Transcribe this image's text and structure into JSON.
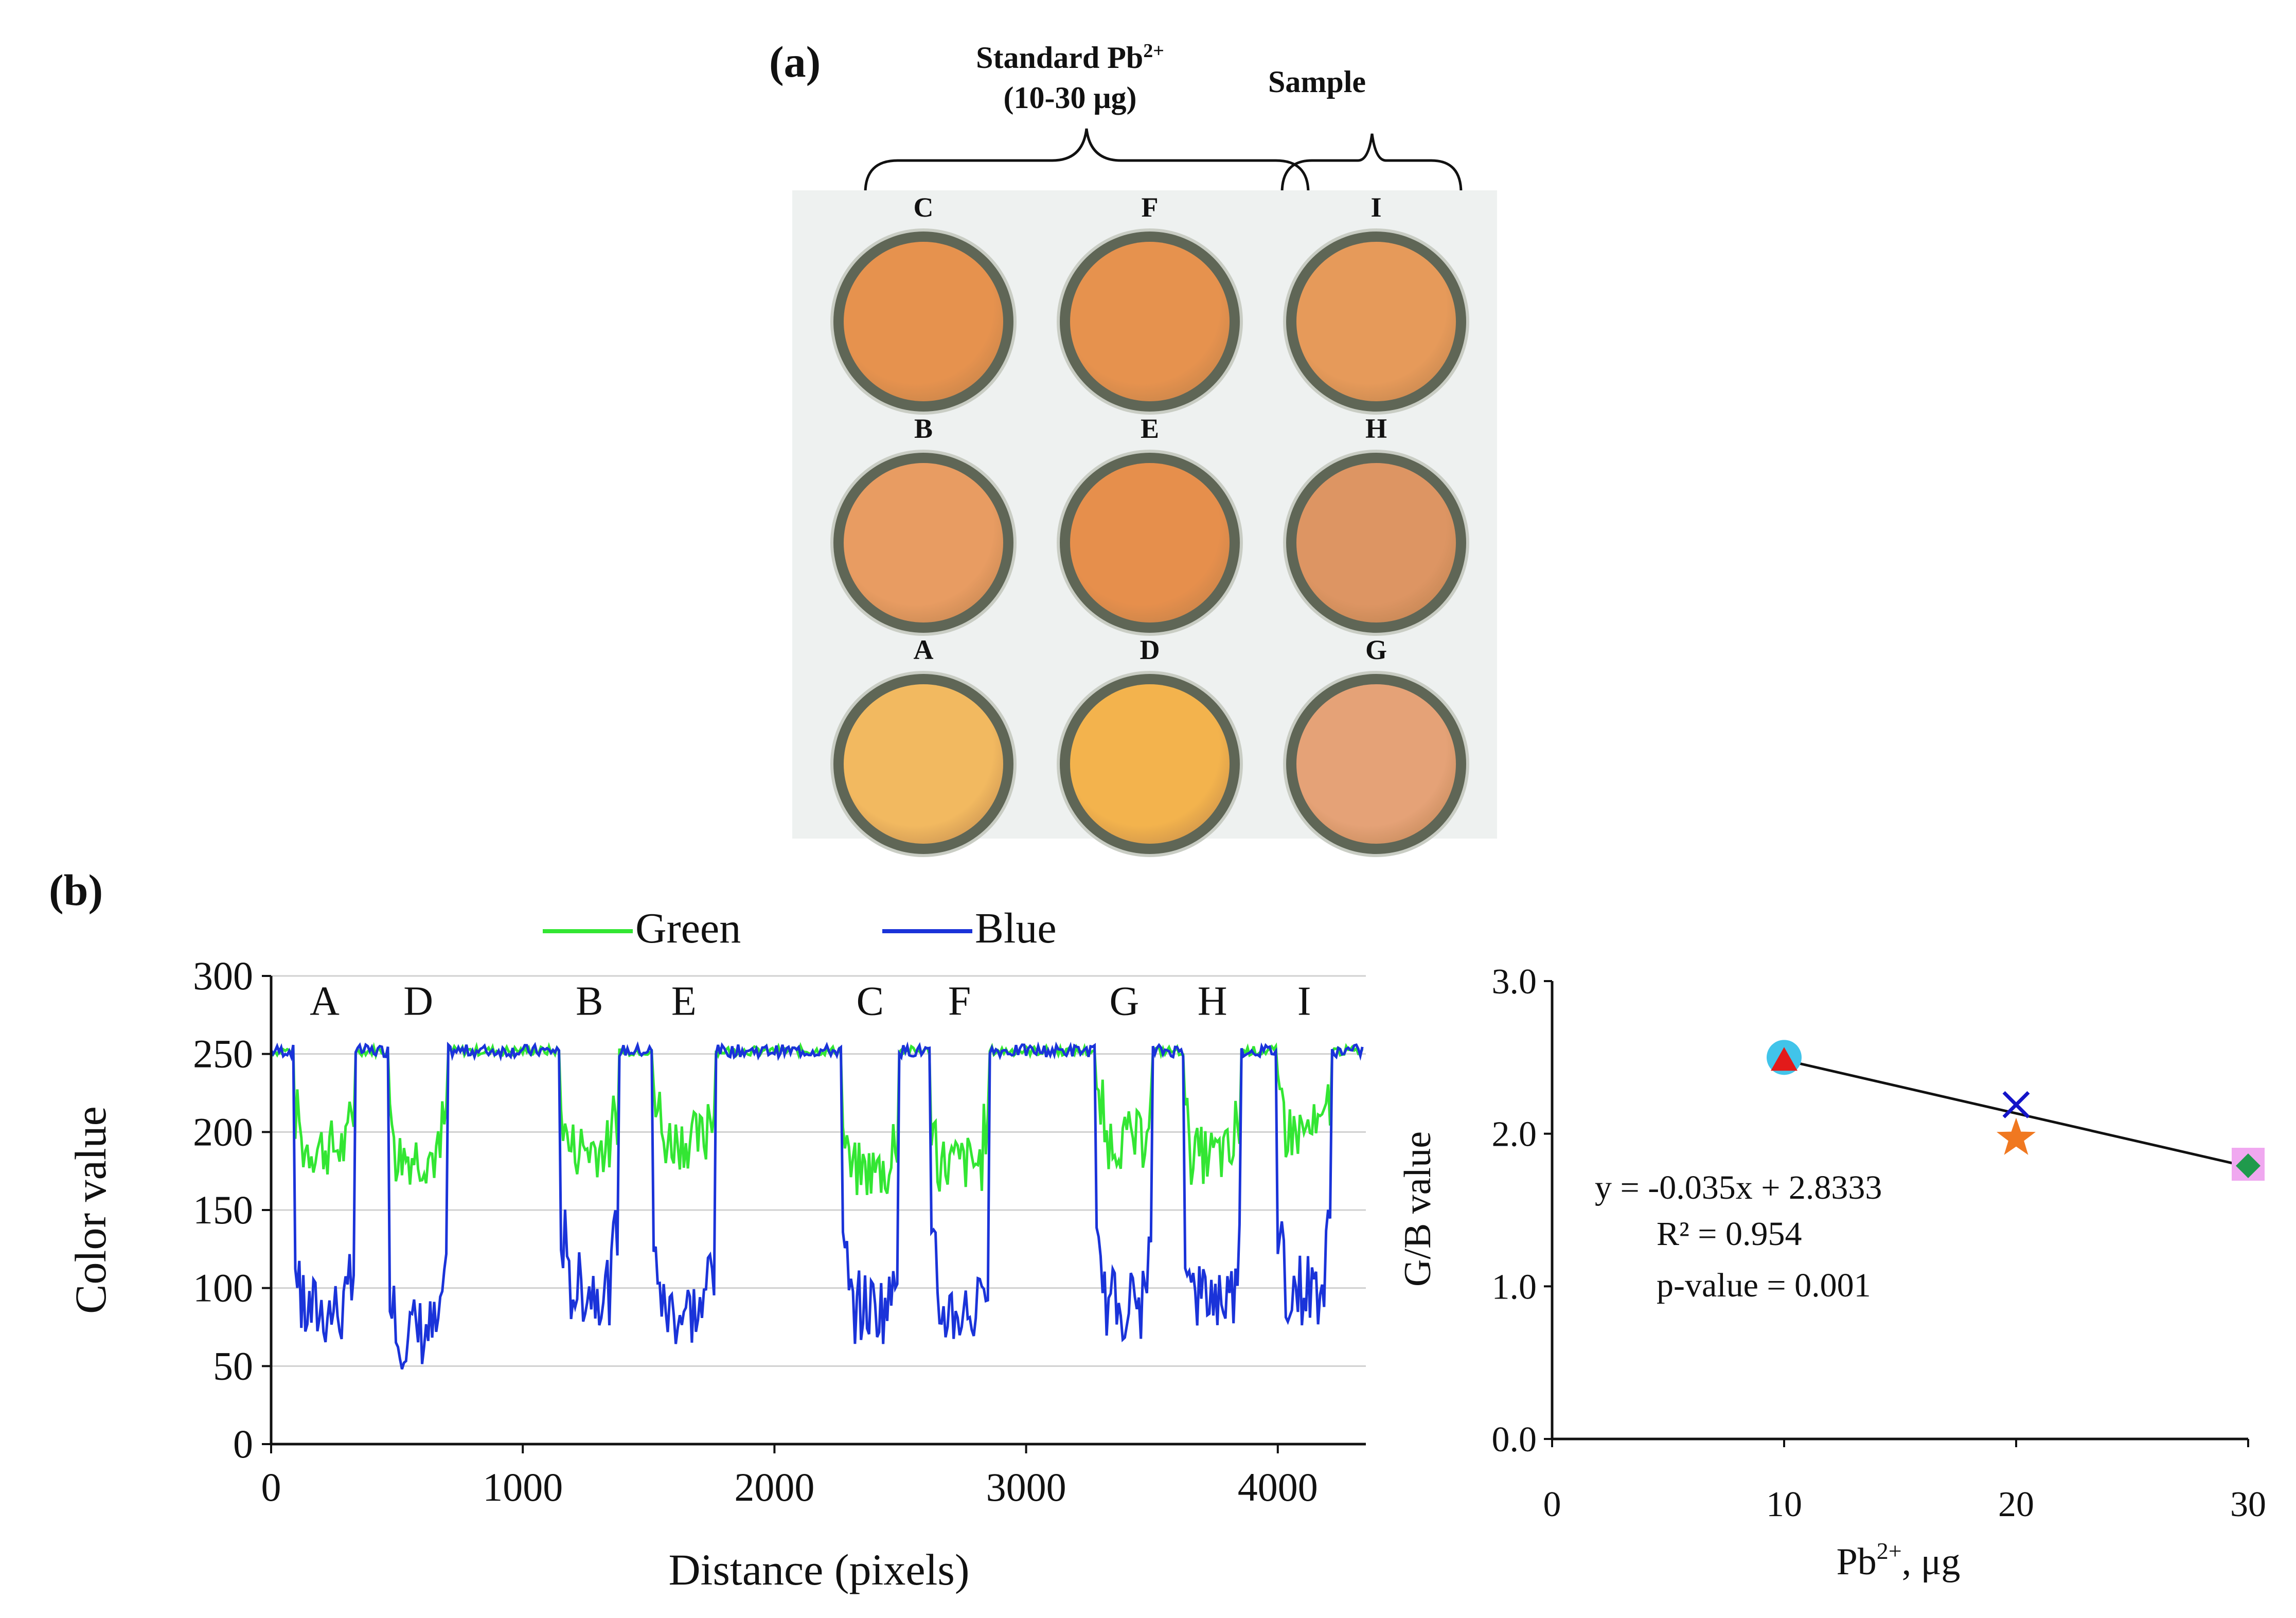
{
  "panel_a": {
    "label": "(a)",
    "header_standard_line1": "Standard Pb",
    "header_standard_sup": "2+",
    "header_standard_line2": "(10-30 μg)",
    "header_sample": "Sample",
    "wells": [
      {
        "id": "C",
        "color": "#e6924e"
      },
      {
        "id": "F",
        "color": "#e6924e"
      },
      {
        "id": "I",
        "color": "#e69a5a"
      },
      {
        "id": "B",
        "color": "#e89c62"
      },
      {
        "id": "E",
        "color": "#e68f4c"
      },
      {
        "id": "H",
        "color": "#dd9563"
      },
      {
        "id": "A",
        "color": "#f2b960"
      },
      {
        "id": "D",
        "color": "#f3b34d"
      },
      {
        "id": "G",
        "color": "#e5a277"
      }
    ]
  },
  "panel_b_label": "(b)",
  "chart_data": [
    {
      "type": "line",
      "xlabel": "Distance (pixels)",
      "ylabel": "Color value",
      "xlim": [
        0,
        4350
      ],
      "ylim": [
        0,
        300
      ],
      "xticks": [
        0,
        1000,
        2000,
        3000,
        4000
      ],
      "yticks": [
        0,
        50,
        100,
        150,
        200,
        250,
        300
      ],
      "grid": "horizontal",
      "legend": "top",
      "colors": {
        "Green": "#33e633",
        "Blue": "#1a33d9"
      },
      "baseline": 252,
      "series": [
        {
          "name": "Green"
        },
        {
          "name": "Blue"
        }
      ],
      "segments": [
        {
          "label": "A",
          "start": 95,
          "end": 330,
          "green": 190,
          "blue": 85
        },
        {
          "label": "D",
          "start": 470,
          "end": 700,
          "green": 185,
          "blue": 72
        },
        {
          "label": "B",
          "start": 1150,
          "end": 1380,
          "green": 190,
          "blue": 100
        },
        {
          "label": "E",
          "start": 1520,
          "end": 1760,
          "green": 195,
          "blue": 85
        },
        {
          "label": "C",
          "start": 2270,
          "end": 2490,
          "green": 175,
          "blue": 88
        },
        {
          "label": "F",
          "start": 2620,
          "end": 2850,
          "green": 180,
          "blue": 85
        },
        {
          "label": "G",
          "start": 3280,
          "end": 3500,
          "green": 195,
          "blue": 90
        },
        {
          "label": "H",
          "start": 3630,
          "end": 3850,
          "green": 185,
          "blue": 95
        },
        {
          "label": "I",
          "start": 4000,
          "end": 4210,
          "green": 200,
          "blue": 100
        }
      ]
    },
    {
      "type": "scatter",
      "xlabel_main": "Pb",
      "xlabel_sup": "2+",
      "xlabel_tail": ", μg",
      "ylabel": "G/B value",
      "xlim": [
        0,
        30
      ],
      "ylim": [
        0.0,
        3.0
      ],
      "xticks": [
        "0",
        "10",
        "20",
        "30"
      ],
      "yticks": [
        "0.0",
        "1.0",
        "2.0",
        "3.0"
      ],
      "points": [
        {
          "x": 10,
          "y": 2.5,
          "marker": "circle",
          "color": "#41c4ea"
        },
        {
          "x": 10,
          "y": 2.48,
          "marker": "triangle",
          "color": "#e31a1a"
        },
        {
          "x": 20,
          "y": 2.19,
          "marker": "x",
          "color": "#1414c8"
        },
        {
          "x": 20,
          "y": 1.97,
          "marker": "star",
          "color": "#f07820"
        },
        {
          "x": 30,
          "y": 1.8,
          "marker": "square",
          "color": "#f0a8f0"
        },
        {
          "x": 30,
          "y": 1.79,
          "marker": "diamond",
          "color": "#1f9a4c"
        }
      ],
      "trendline": {
        "slope": -0.035,
        "intercept": 2.8333,
        "x_from": 10,
        "x_to": 30
      },
      "annotations": [
        "y = -0.035x + 2.8333",
        "R² = 0.954",
        "p-value = 0.001"
      ]
    }
  ]
}
